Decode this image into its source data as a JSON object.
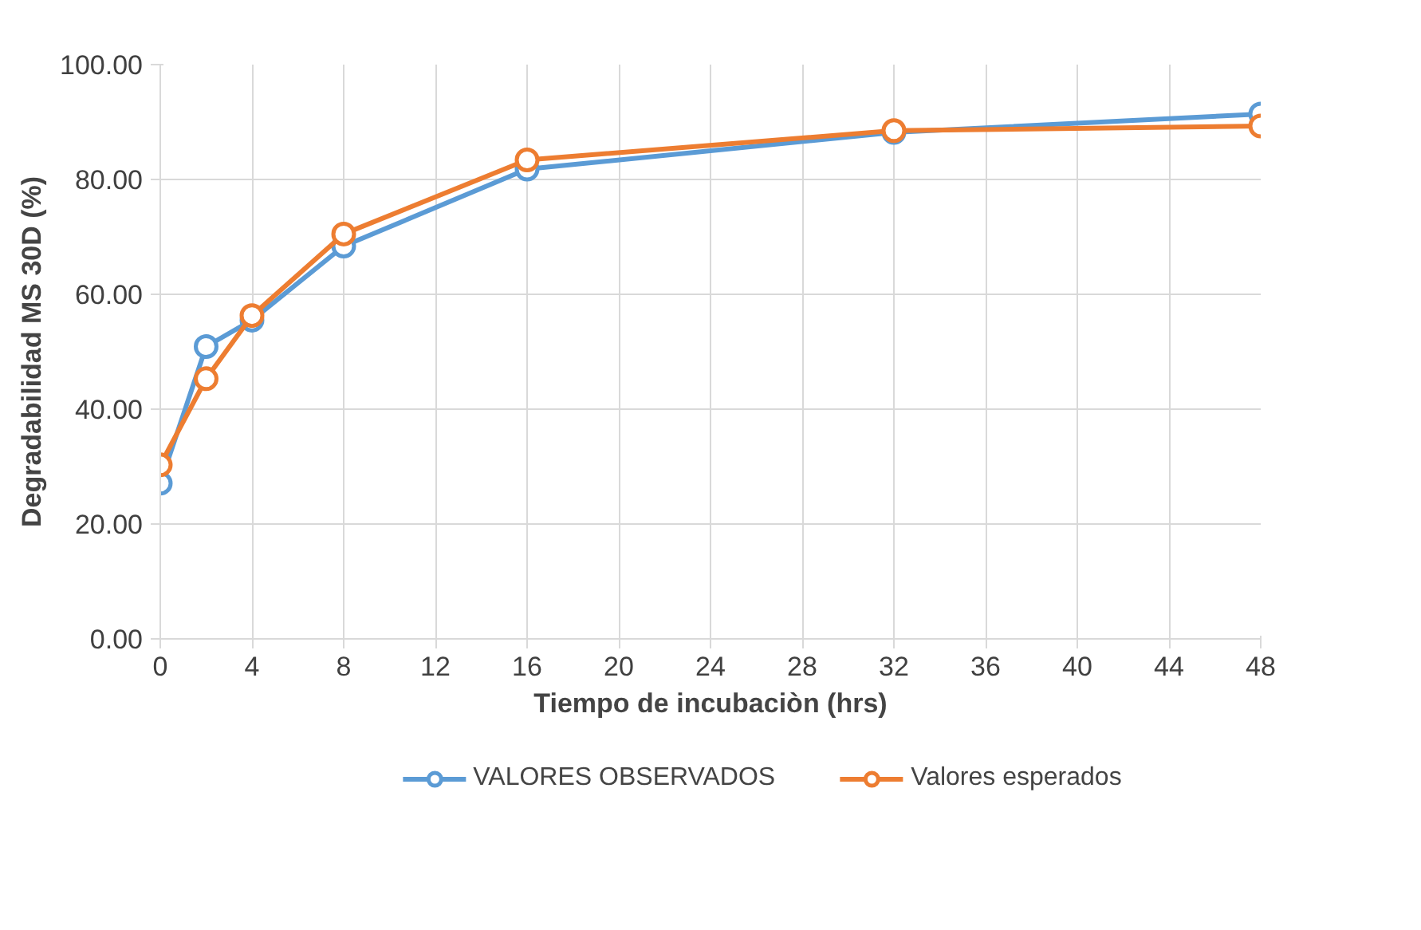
{
  "chart_data": {
    "type": "line",
    "xlabel": "Tiempo de incubaciòn (hrs)",
    "ylabel": "Degradabilidad MS 30D (%)",
    "x": [
      0,
      2,
      4,
      8,
      16,
      32,
      48
    ],
    "series": [
      {
        "name": "VALORES OBSERVADOS",
        "color": "#5b9bd5",
        "values": [
          27.1,
          50.9,
          55.5,
          68.4,
          81.8,
          88.2,
          91.4
        ]
      },
      {
        "name": "Valores esperados",
        "color": "#ed7d31",
        "values": [
          30.3,
          45.3,
          56.3,
          70.5,
          83.4,
          88.5,
          89.3
        ]
      }
    ],
    "xlim": [
      0,
      48
    ],
    "xticks": [
      0,
      4,
      8,
      12,
      16,
      20,
      24,
      28,
      32,
      36,
      40,
      44,
      48
    ],
    "ylim": [
      0,
      100
    ],
    "yticks": [
      {
        "value": 0,
        "label": "0.00"
      },
      {
        "value": 20,
        "label": "20.00"
      },
      {
        "value": 40,
        "label": "40.00"
      },
      {
        "value": 60,
        "label": "60.00"
      },
      {
        "value": 80,
        "label": "80.00"
      },
      {
        "value": 100,
        "label": "100.00"
      }
    ],
    "grid": true,
    "legend": "bottom",
    "marker": "circle",
    "line_style": "solid"
  }
}
